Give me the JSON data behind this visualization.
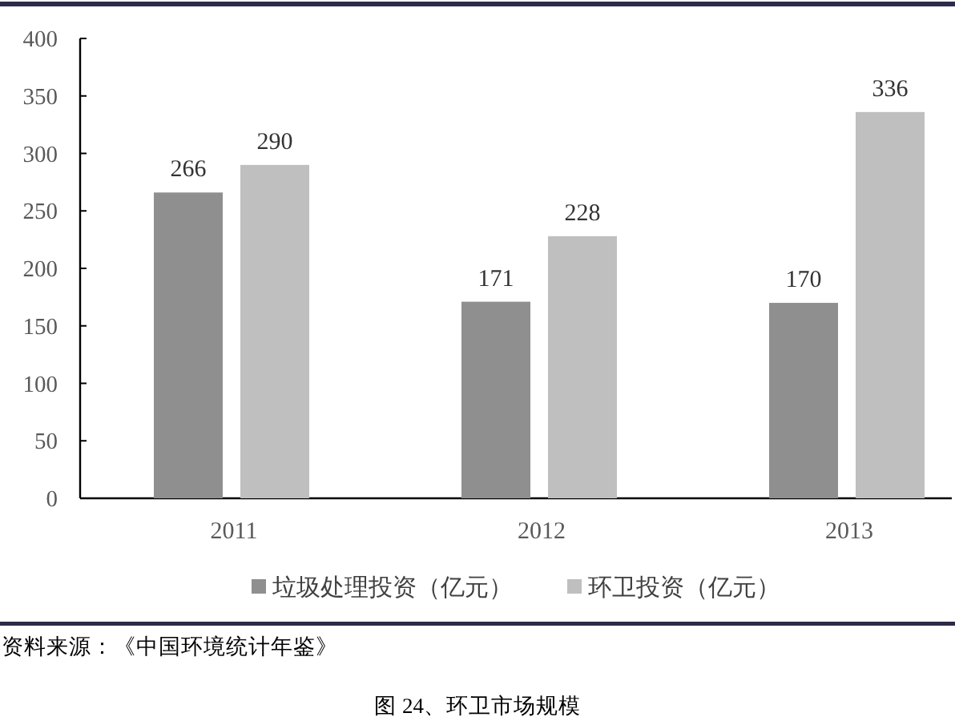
{
  "chart_data": {
    "type": "bar",
    "categories": [
      "2011",
      "2012",
      "2013"
    ],
    "series": [
      {
        "name": "垃圾处理投资（亿元）",
        "color": "#8f8f8f",
        "values": [
          266,
          171,
          170
        ]
      },
      {
        "name": "环卫投资（亿元）",
        "color": "#bfbfbf",
        "values": [
          290,
          228,
          336
        ]
      }
    ],
    "ylim": [
      0,
      400
    ],
    "yticks": [
      0,
      50,
      100,
      150,
      200,
      250,
      300,
      350,
      400
    ],
    "data_labels": true,
    "legend": "bottom",
    "annotations": [
      "资料来源：《中国环境统计年鉴》",
      "图 24、环卫市场规模"
    ]
  }
}
